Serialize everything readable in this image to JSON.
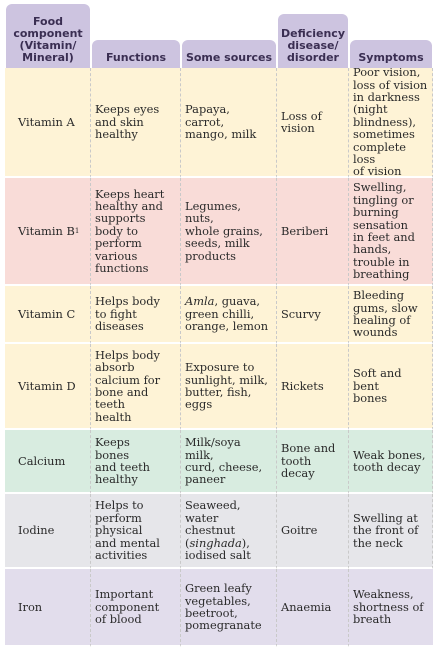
{
  "headers": {
    "food_component": "Food\ncomponent\n(Vitamin/\nMineral)",
    "functions": "Functions",
    "some_sources": "Some sources",
    "deficiency": "Deficiency\ndisease/\ndisorder",
    "symptoms": "Symptoms"
  },
  "rows": [
    {
      "component": "Vitamin A",
      "functions": "Keeps eyes\nand skin\nhealthy",
      "sources": "Papaya, carrot,\nmango, milk",
      "deficiency": "Loss of\nvision",
      "symptoms": "Poor vision,\nloss of vision\nin darkness\n(night\nblindness),\nsometimes\ncomplete loss\nof vision",
      "color": "#fef3d6"
    },
    {
      "component": "Vitamin B",
      "component_sub": "1",
      "functions": "Keeps heart\nhealthy and\nsupports\nbody to\nperform\nvarious\nfunctions",
      "sources": "Legumes, nuts,\nwhole grains,\nseeds, milk\nproducts",
      "deficiency": "Beriberi",
      "symptoms": "Swelling,\ntingling or\nburning\nsensation\nin feet and\nhands,\ntrouble in\nbreathing",
      "color": "#f9dcd8"
    },
    {
      "component": "Vitamin C",
      "functions": "Helps body\nto fight\ndiseases",
      "sources_italic": "Amla",
      "sources": ", guava,\ngreen chilli,\norange, lemon",
      "deficiency": "Scurvy",
      "symptoms": "Bleeding\ngums, slow\nhealing of\nwounds",
      "color": "#fef3d6"
    },
    {
      "component": "Vitamin D",
      "functions": "Helps body\nabsorb\ncalcium for\nbone and\nteeth\nhealth",
      "sources": "Exposure to\nsunlight, milk,\nbutter, fish,\neggs",
      "deficiency": "Rickets",
      "symptoms": "Soft and bent\nbones",
      "color": "#fef3d6"
    },
    {
      "component": "Calcium",
      "functions": "Keeps\nbones\nand teeth\nhealthy",
      "sources": "Milk/soya milk,\ncurd, cheese,\npaneer",
      "deficiency": "Bone and\ntooth\ndecay",
      "symptoms": "Weak bones,\ntooth decay",
      "color": "#d8ece0"
    },
    {
      "component": "Iodine",
      "functions": "Helps to\nperform\nphysical\nand mental\nactivities",
      "sources_pre": "Seaweed,\nwater chestnut\n(",
      "sources_italic": "singhada",
      "sources": "),\niodised salt",
      "deficiency": "Goitre",
      "symptoms": "Swelling at\nthe front of\nthe neck",
      "color": "#e6e6ea"
    },
    {
      "component": "Iron",
      "functions": "Important\ncomponent\nof blood",
      "sources": "Green leafy\nvegetables,\nbeetroot,\npomegranate",
      "deficiency": "Anaemia",
      "symptoms": "Weakness,\nshortness of\nbreath",
      "color": "#e2ddec"
    }
  ]
}
